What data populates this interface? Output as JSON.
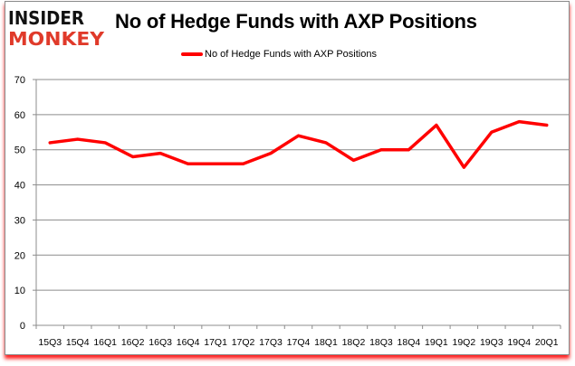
{
  "logo": {
    "line1": "INSIDER",
    "line2": "MONKEY"
  },
  "chart_data": {
    "type": "line",
    "title": "No of Hedge Funds with AXP Positions",
    "categories": [
      "15Q3",
      "15Q4",
      "16Q1",
      "16Q2",
      "16Q3",
      "16Q4",
      "17Q1",
      "17Q2",
      "17Q3",
      "17Q4",
      "18Q1",
      "18Q2",
      "18Q3",
      "18Q4",
      "19Q1",
      "19Q2",
      "19Q3",
      "19Q4",
      "20Q1"
    ],
    "series": [
      {
        "name": "No of Hedge Funds with AXP Positions",
        "color": "#ff0000",
        "values": [
          52,
          53,
          52,
          48,
          49,
          46,
          46,
          46,
          49,
          54,
          52,
          47,
          50,
          50,
          57,
          45,
          55,
          58,
          57
        ]
      }
    ],
    "ylim": [
      0,
      70
    ],
    "yticks": [
      0,
      10,
      20,
      30,
      40,
      50,
      60,
      70
    ],
    "grid": true,
    "legend": "top-center"
  }
}
